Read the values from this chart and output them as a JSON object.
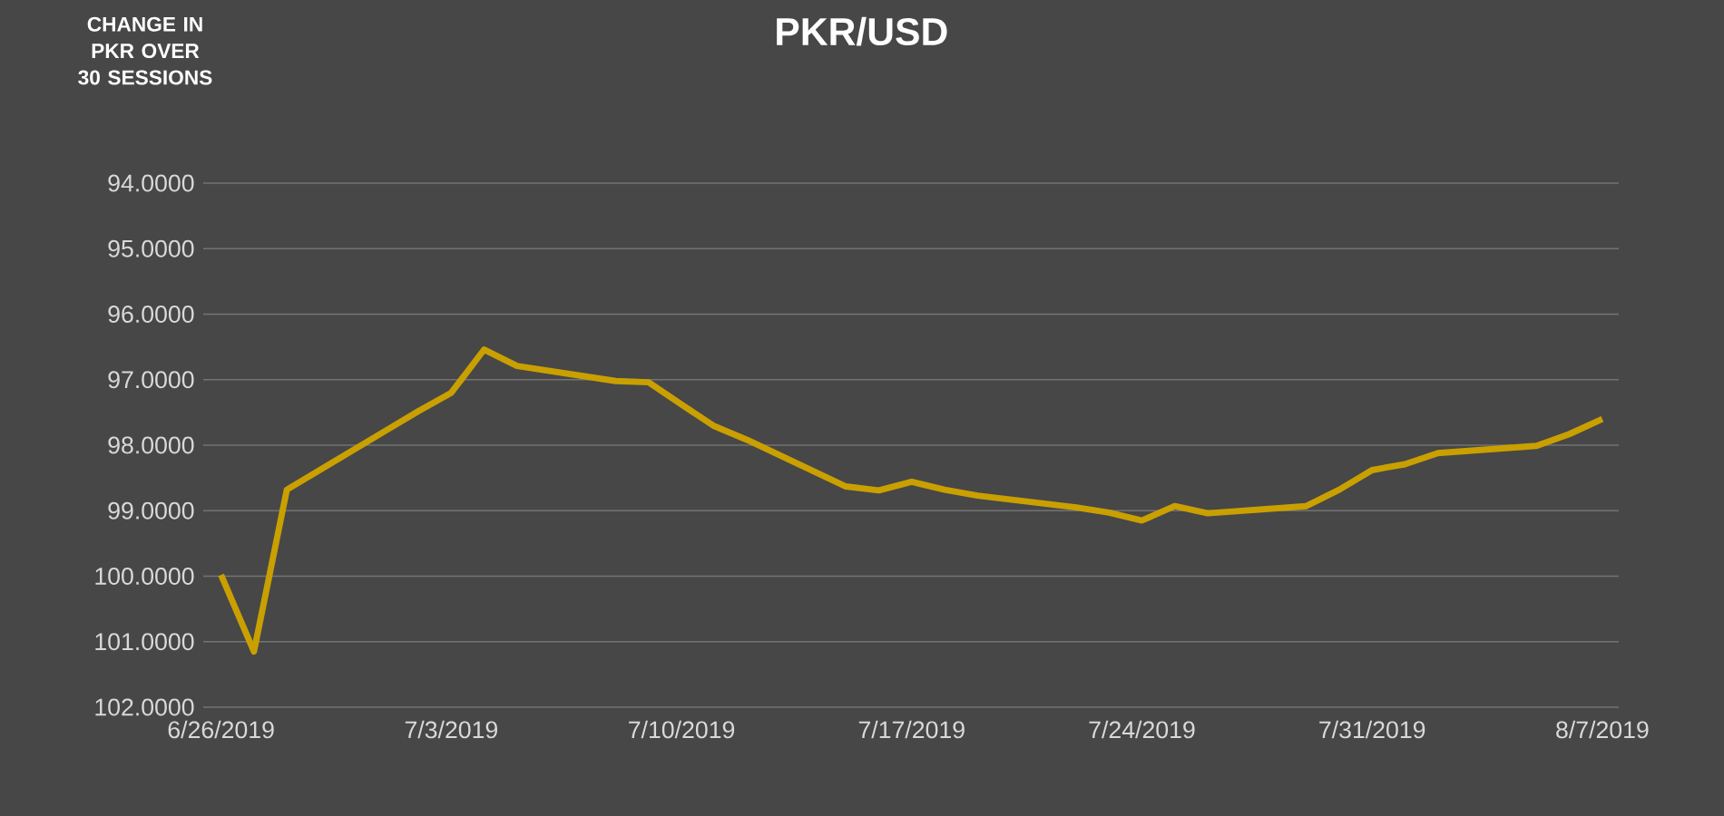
{
  "chart_data": {
    "type": "line",
    "title": "PKR/USD",
    "ylabel": "CHANGE IN PKR OVER 30 SESSIONS",
    "x": [
      "2019-06-26",
      "2019-06-27",
      "2019-06-28",
      "2019-07-01",
      "2019-07-02",
      "2019-07-03",
      "2019-07-04",
      "2019-07-05",
      "2019-07-08",
      "2019-07-09",
      "2019-07-10",
      "2019-07-11",
      "2019-07-12",
      "2019-07-15",
      "2019-07-16",
      "2019-07-17",
      "2019-07-18",
      "2019-07-19",
      "2019-07-22",
      "2019-07-23",
      "2019-07-24",
      "2019-07-25",
      "2019-07-26",
      "2019-07-29",
      "2019-07-30",
      "2019-07-31",
      "2019-08-01",
      "2019-08-02",
      "2019-08-05",
      "2019-08-06",
      "2019-08-07"
    ],
    "series": [
      {
        "color": "#c9a000",
        "values": [
          99.98,
          101.15,
          98.68,
          97.78,
          97.48,
          97.2,
          96.54,
          96.79,
          97.02,
          97.04,
          97.38,
          97.71,
          97.92,
          98.63,
          98.69,
          98.56,
          98.68,
          98.77,
          98.95,
          99.03,
          99.15,
          98.93,
          99.04,
          98.93,
          98.68,
          98.38,
          98.29,
          98.12,
          98.01,
          97.83,
          97.6
        ]
      }
    ],
    "xlim": [
      "2019-06-25T11:00",
      "2019-08-07T12:00"
    ],
    "xticks": [
      {
        "value": "2019-06-26",
        "label": "6/26/2019"
      },
      {
        "value": "2019-07-03",
        "label": "7/3/2019"
      },
      {
        "value": "2019-07-10",
        "label": "7/10/2019"
      },
      {
        "value": "2019-07-17",
        "label": "7/17/2019"
      },
      {
        "value": "2019-07-24",
        "label": "7/24/2019"
      },
      {
        "value": "2019-07-31",
        "label": "7/31/2019"
      },
      {
        "value": "2019-08-07",
        "label": "8/7/2019"
      }
    ],
    "ylim": [
      102,
      94
    ],
    "yticks": [
      {
        "value": 94,
        "label": "94.0000"
      },
      {
        "value": 95,
        "label": "95.0000"
      },
      {
        "value": 96,
        "label": "96.0000"
      },
      {
        "value": 97,
        "label": "97.0000"
      },
      {
        "value": 98,
        "label": "98.0000"
      },
      {
        "value": 99,
        "label": "99.0000"
      },
      {
        "value": 100,
        "label": "100.0000"
      },
      {
        "value": 101,
        "label": "101.0000"
      },
      {
        "value": 102,
        "label": "102.0000"
      }
    ],
    "grid": "y",
    "marker": "none",
    "line_style": "solid"
  }
}
